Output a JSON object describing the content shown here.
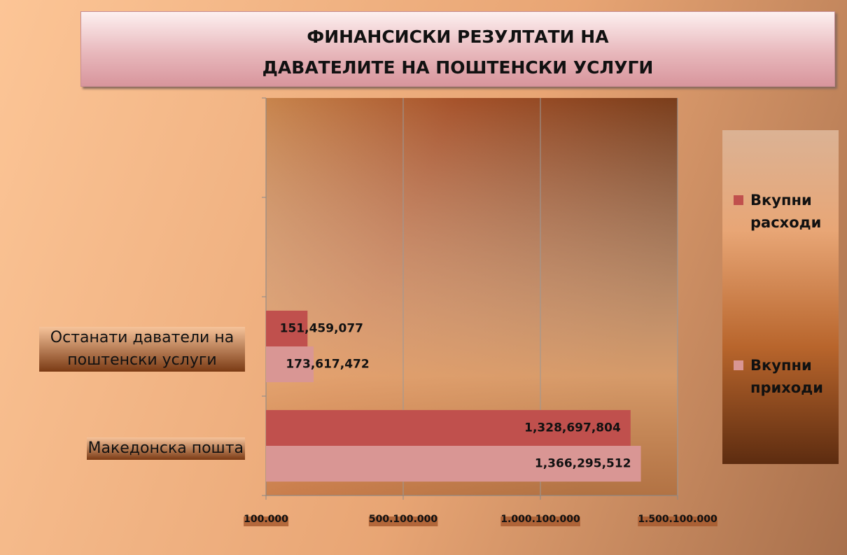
{
  "chart_data": {
    "type": "hbar",
    "title": "ФИНАНСИСКИ РЕЗУЛТАТИ НА ДАВАТЕЛИТЕ НА ПОШТЕНСКИ  УСЛУГИ",
    "categories": [
      null,
      null,
      "Останати даватели на поштенски услуги",
      "Македонска пошта"
    ],
    "series": [
      {
        "name": "Вкупни расходи",
        "color": "#c0504d",
        "values": [
          null,
          null,
          151459077,
          1328697804
        ],
        "value_labels": [
          null,
          null,
          "151,459,077",
          "1,328,697,804"
        ]
      },
      {
        "name": "Вкупни приходи",
        "color": "#d99694",
        "values": [
          null,
          null,
          173617472,
          1366295512
        ],
        "value_labels": [
          null,
          null,
          "173,617,472",
          "1,366,295,512"
        ]
      }
    ],
    "xlim": [
      100000,
      1500100000
    ],
    "xticks": [
      {
        "value": 100000,
        "label": "100.000"
      },
      {
        "value": 500100000,
        "label": "500.100.000"
      },
      {
        "value": 1000100000,
        "label": "1.000.100.000"
      },
      {
        "value": 1500100000,
        "label": "1.500.100.000"
      }
    ],
    "grid": true,
    "legend": "right"
  }
}
